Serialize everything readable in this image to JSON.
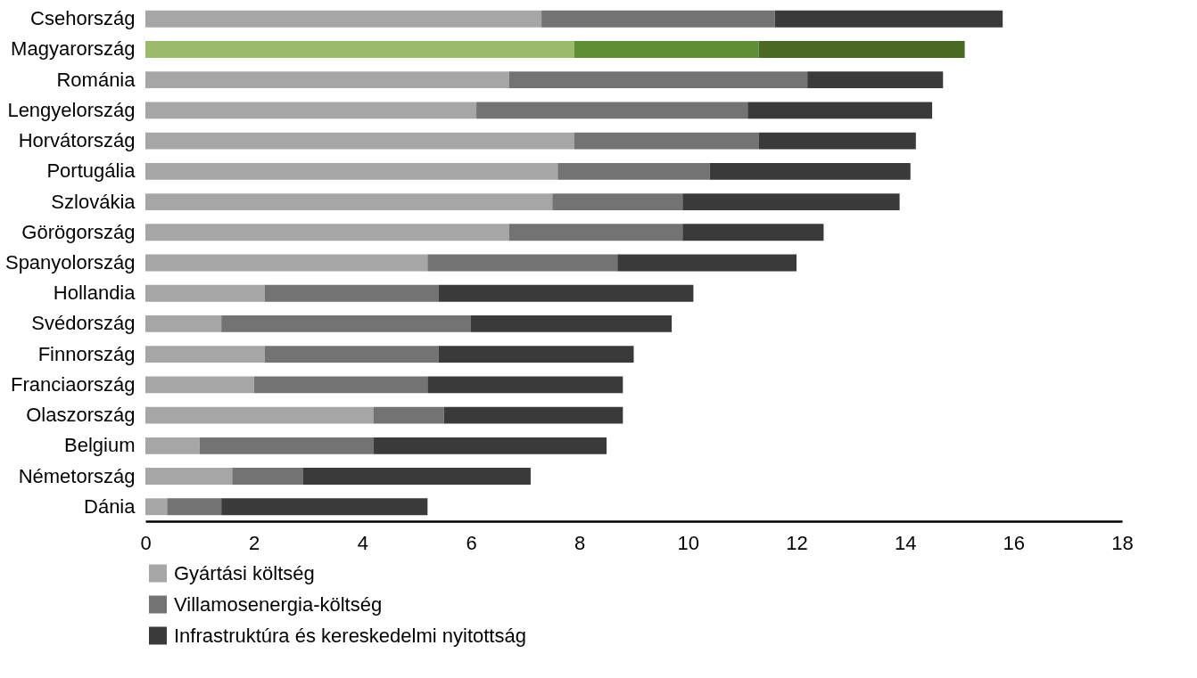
{
  "chart_data": {
    "type": "bar",
    "orientation": "horizontal",
    "stacked": true,
    "categories": [
      "Csehország",
      "Magyarország",
      "Románia",
      "Lengyelország",
      "Horvátország",
      "Portugália",
      "Szlovákia",
      "Görögország",
      "Spanyolország",
      "Hollandia",
      "Svédország",
      "Finnország",
      "Franciaország",
      "Olaszország",
      "Belgium",
      "Németország",
      "Dánia"
    ],
    "series": [
      {
        "name": "Gyártási költség",
        "color": "#a6a6a6",
        "colors": [
          "#a6a6a6",
          "#9bbb6b",
          "#a6a6a6",
          "#a6a6a6",
          "#a6a6a6",
          "#a6a6a6",
          "#a6a6a6",
          "#a6a6a6",
          "#a6a6a6",
          "#a6a6a6",
          "#a6a6a6",
          "#a6a6a6",
          "#a6a6a6",
          "#a6a6a6",
          "#a6a6a6",
          "#a6a6a6",
          "#a6a6a6"
        ],
        "values": [
          7.3,
          7.9,
          6.7,
          6.1,
          7.9,
          7.6,
          7.5,
          6.7,
          5.2,
          2.2,
          1.4,
          2.2,
          2.0,
          4.2,
          1.0,
          1.6,
          0.4
        ]
      },
      {
        "name": "Villamosenergia-költség",
        "color": "#737373",
        "colors": [
          "#737373",
          "#5e8f35",
          "#737373",
          "#737373",
          "#737373",
          "#737373",
          "#737373",
          "#737373",
          "#737373",
          "#737373",
          "#737373",
          "#737373",
          "#737373",
          "#737373",
          "#737373",
          "#737373",
          "#737373"
        ],
        "values": [
          4.3,
          3.4,
          5.5,
          5.0,
          3.4,
          2.8,
          2.4,
          3.2,
          3.5,
          3.2,
          4.6,
          3.2,
          3.2,
          1.3,
          3.2,
          1.3,
          1.0
        ]
      },
      {
        "name": "Infrastruktúra és kereskedelmi nyitottság",
        "color": "#3a3a3a",
        "colors": [
          "#3a3a3a",
          "#4a6a24",
          "#3a3a3a",
          "#3a3a3a",
          "#3a3a3a",
          "#3a3a3a",
          "#3a3a3a",
          "#3a3a3a",
          "#3a3a3a",
          "#3a3a3a",
          "#3a3a3a",
          "#3a3a3a",
          "#3a3a3a",
          "#3a3a3a",
          "#3a3a3a",
          "#3a3a3a",
          "#3a3a3a"
        ],
        "values": [
          4.2,
          3.8,
          2.5,
          3.4,
          2.9,
          3.7,
          4.0,
          2.6,
          3.3,
          4.7,
          3.7,
          3.6,
          3.6,
          3.3,
          4.3,
          4.2,
          3.8
        ]
      }
    ],
    "xlim": [
      0,
      18
    ],
    "xticks": [
      0,
      2,
      4,
      6,
      8,
      10,
      12,
      14,
      16,
      18
    ],
    "grid": false,
    "legend": "bottom left"
  }
}
